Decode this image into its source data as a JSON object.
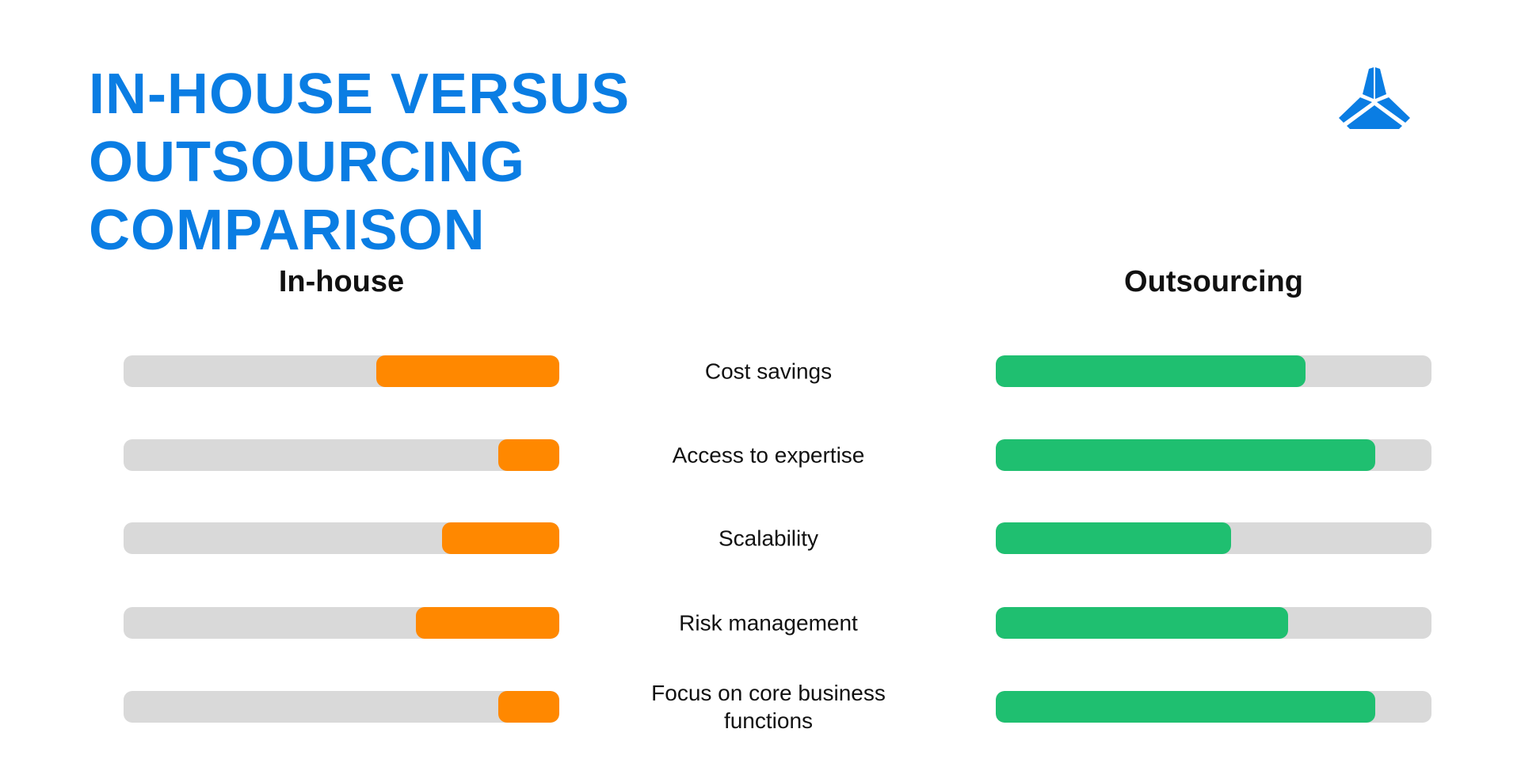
{
  "chart_data": {
    "type": "bar",
    "title": "IN-HOUSE VERSUS OUTSOURCING COMPARISON",
    "categories": [
      "Cost savings",
      "Access to expertise",
      "Scalability",
      "Risk management",
      "Focus on core business functions"
    ],
    "series": [
      {
        "name": "In-house",
        "color": "#ff8800",
        "values": [
          42,
          14,
          27,
          33,
          14
        ]
      },
      {
        "name": "Outsourcing",
        "color": "#1fbf70",
        "values": [
          71,
          87,
          54,
          67,
          87
        ]
      }
    ],
    "xlim": [
      0,
      100
    ]
  }
}
